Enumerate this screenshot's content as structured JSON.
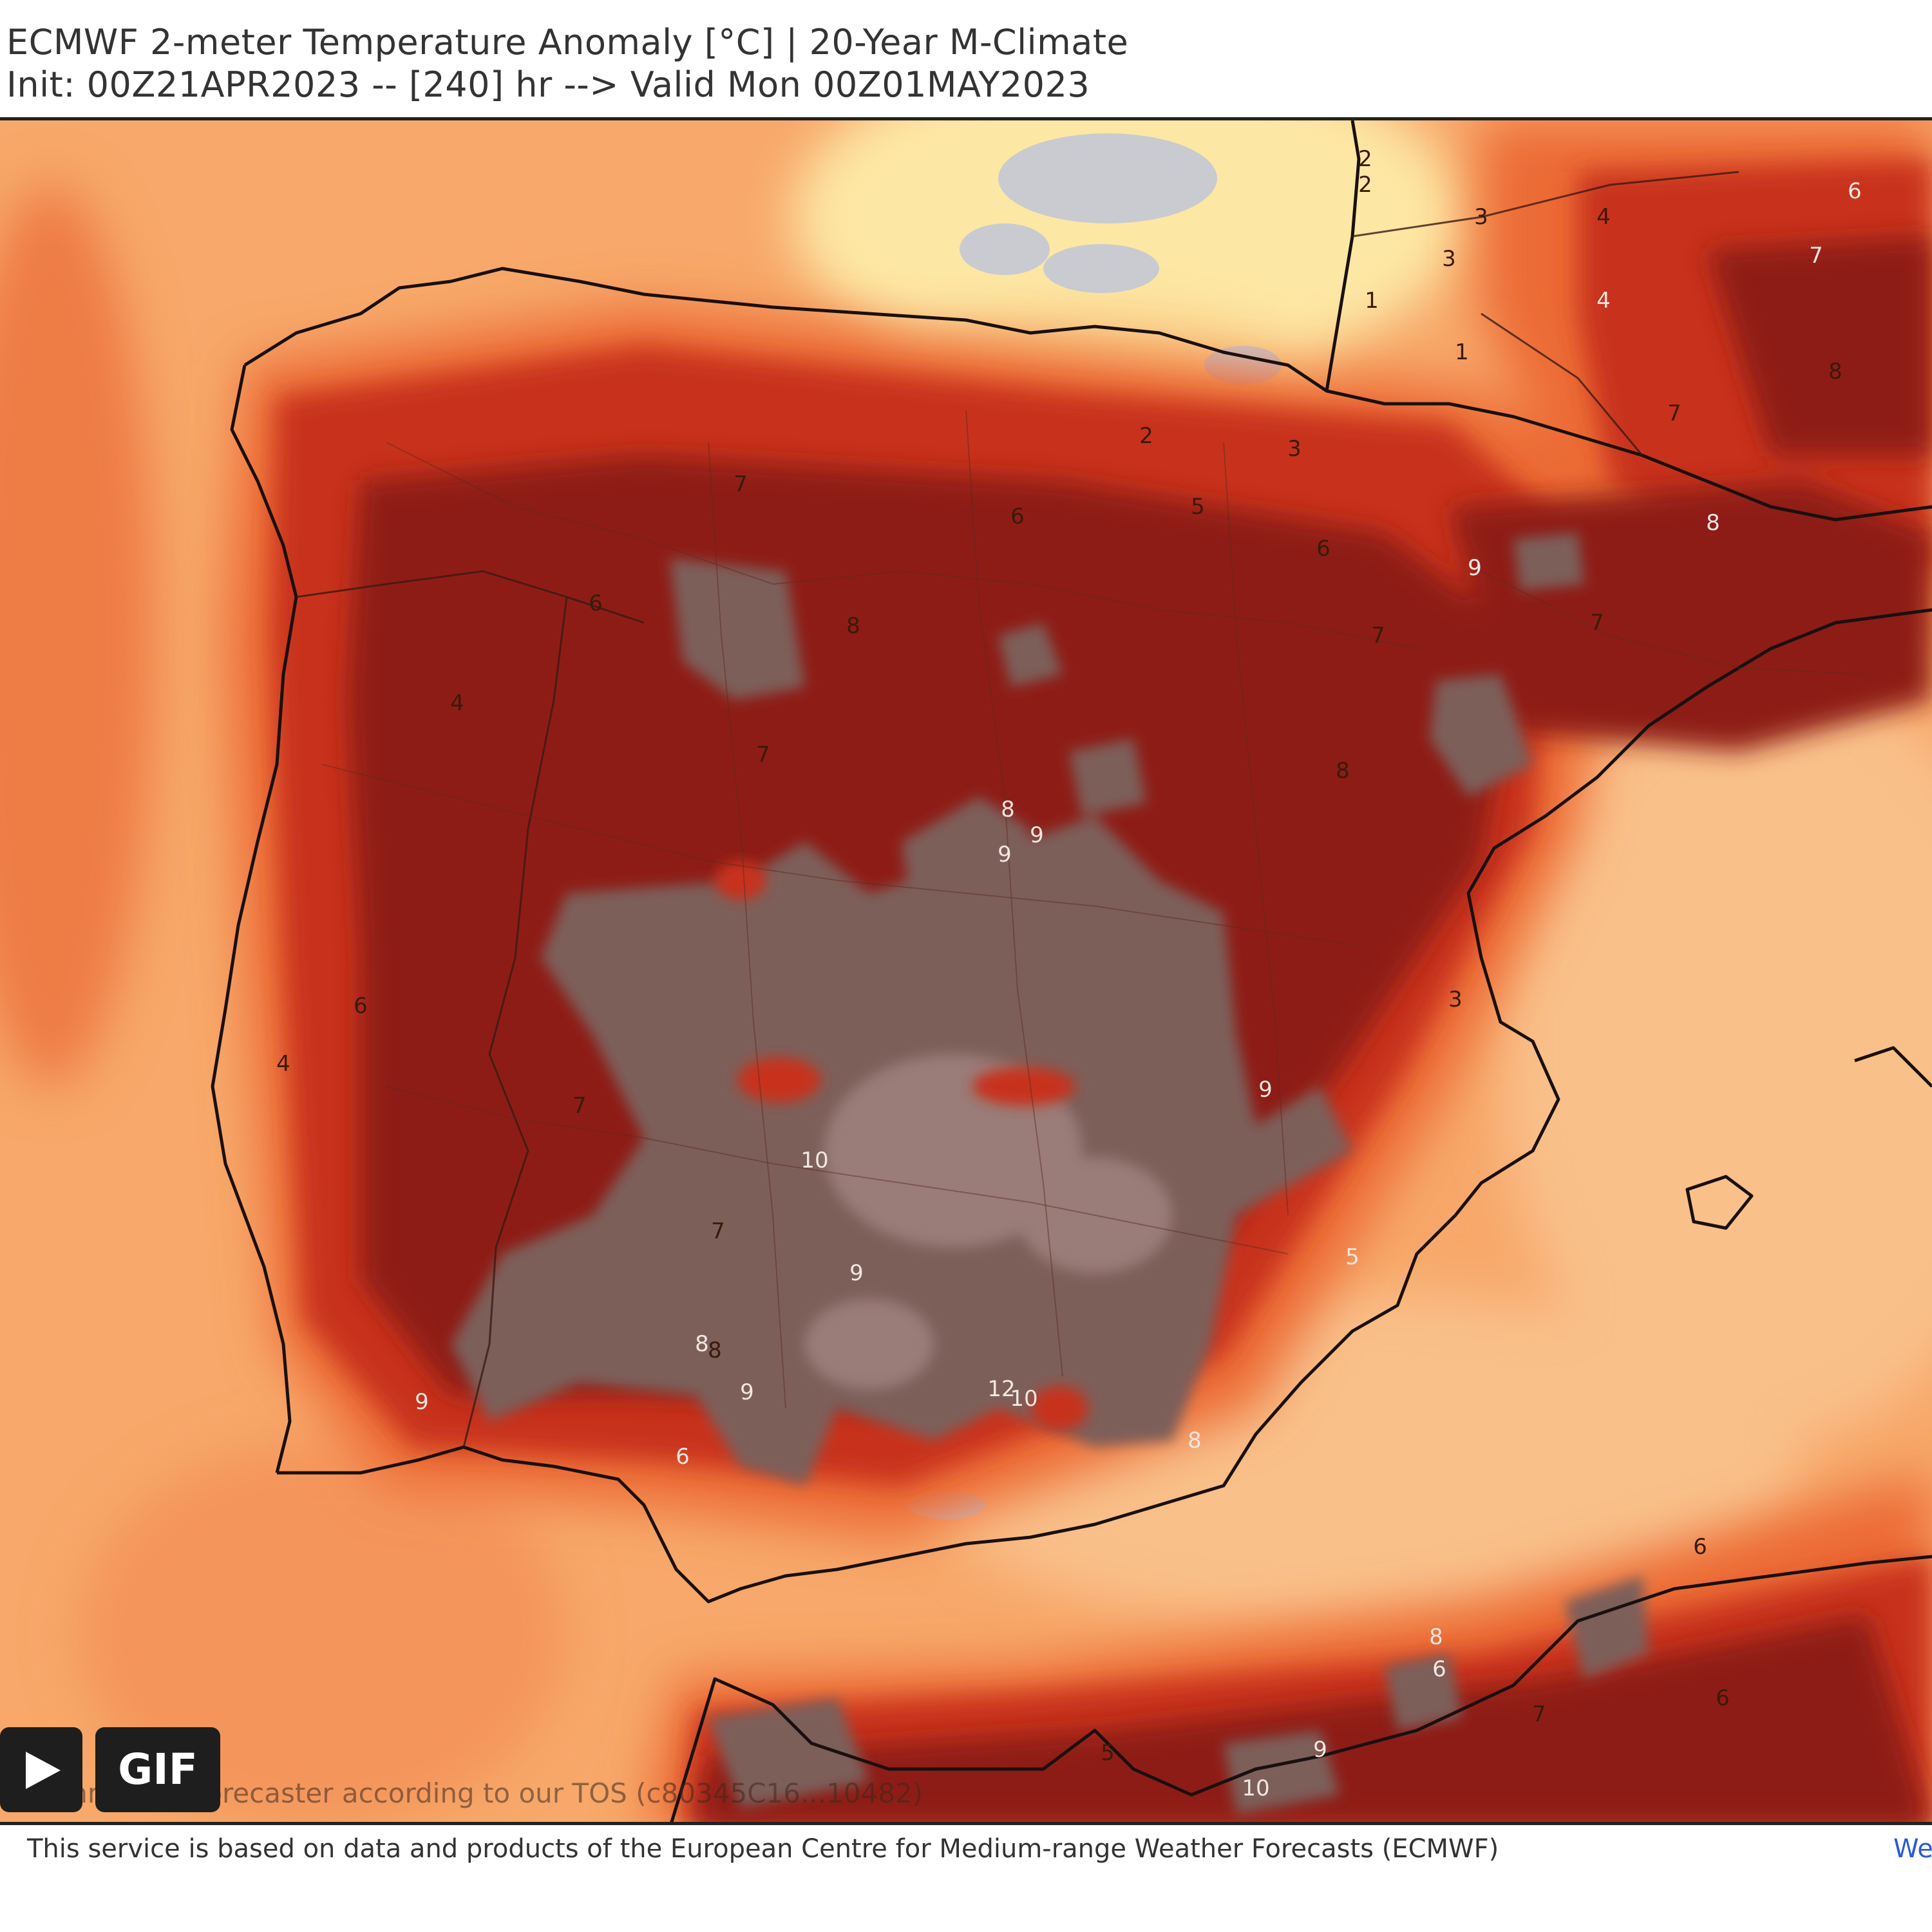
{
  "header": {
    "title": "ECMWF 2-meter Temperature Anomaly [°C] | 20-Year M-Climate",
    "subtitle": "Init: 00Z21APR2023 -- [240] hr --> Valid Mon 00Z01MAY2023"
  },
  "map": {
    "colors": {
      "sea_warm": "#f7a86a",
      "sea_light": "#f9c08a",
      "sea_cool": "#fde7a4",
      "anom_moderate": "#ec6a35",
      "anom_high": "#c8321e",
      "anom_very_high": "#8e1b16",
      "anom_extreme": "#7d5e5a",
      "anom_extreme_light": "#9a7c78",
      "near_zero": "#c9cbd0",
      "coast": "#1a1010"
    },
    "contour_labels": [
      "2",
      "2",
      "3",
      "4",
      "3",
      "1",
      "1",
      "2",
      "3",
      "5",
      "7",
      "6",
      "6",
      "7",
      "9",
      "7",
      "8",
      "8",
      "6",
      "4",
      "7",
      "8",
      "8",
      "9",
      "9",
      "7",
      "6",
      "7",
      "10",
      "9",
      "9",
      "8",
      "9",
      "6",
      "12",
      "10",
      "8",
      "5",
      "9",
      "3",
      "4",
      "6",
      "7",
      "6",
      "7",
      "8",
      "5",
      "9",
      "10",
      "6",
      "8",
      "7",
      "6",
      "4",
      "9",
      "8"
    ]
  },
  "controls": {
    "play_label": "play",
    "gif_label": "GIF"
  },
  "watermark": {
    "tos": "Commercial forecaster according to our TOS (c80345C16...10482)"
  },
  "footer": {
    "credit": "This service is based on data and products of the European Centre for Medium-range Weather Forecasts (ECMWF)",
    "web": "We"
  }
}
